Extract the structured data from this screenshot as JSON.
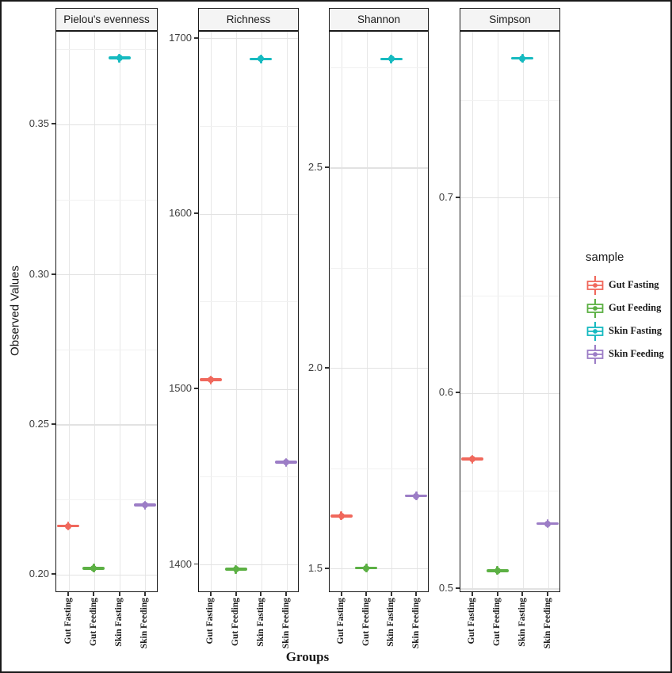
{
  "figure": {
    "y_axis_title": "Observed Values",
    "x_axis_title": "Groups"
  },
  "chart_data": {
    "type": "scatter",
    "subtype": "faceted-boxplot-summary",
    "title": "",
    "xlabel": "Groups",
    "ylabel": "Observed Values",
    "grid": true,
    "legend_position": "right",
    "categories": [
      "Gut Fasting",
      "Gut Feeding",
      "Skin Fasting",
      "Skin Feeding"
    ],
    "colors": {
      "Gut Fasting": "#f0685c",
      "Gut Feeding": "#5cb044",
      "Skin Fasting": "#16bac0",
      "Skin Feeding": "#9c7dc6"
    },
    "panels": [
      {
        "title": "Pielou's evenness",
        "ylim": [
          0.194,
          0.381
        ],
        "yticks": [
          0.2,
          0.25,
          0.3,
          0.35
        ],
        "ytick_labels": [
          "0.20",
          "0.25",
          "0.30",
          "0.35"
        ],
        "yticks_minor": [
          0.225,
          0.275,
          0.325,
          0.375
        ],
        "values": [
          0.216,
          0.202,
          0.372,
          0.223
        ]
      },
      {
        "title": "Richness",
        "ylim": [
          1384,
          1704
        ],
        "yticks": [
          1400,
          1500,
          1600,
          1700
        ],
        "ytick_labels": [
          "1400",
          "1500",
          "1600",
          "1700"
        ],
        "yticks_minor": [
          1450,
          1550,
          1650
        ],
        "values": [
          1505,
          1397,
          1688,
          1458
        ]
      },
      {
        "title": "Shannon",
        "ylim": [
          1.44,
          2.84
        ],
        "yticks": [
          1.5,
          2.0,
          2.5
        ],
        "ytick_labels": [
          "1.5",
          "2.0",
          "2.5"
        ],
        "yticks_minor": [
          1.75,
          2.25,
          2.75
        ],
        "values": [
          1.63,
          1.5,
          2.77,
          1.68
        ]
      },
      {
        "title": "Simpson",
        "ylim": [
          0.498,
          0.785
        ],
        "yticks": [
          0.5,
          0.6,
          0.7
        ],
        "ytick_labels": [
          "0.5",
          "0.6",
          "0.7"
        ],
        "yticks_minor": [
          0.55,
          0.65,
          0.75
        ],
        "values": [
          0.566,
          0.509,
          0.771,
          0.533
        ]
      }
    ],
    "legend": {
      "title": "sample",
      "items": [
        {
          "label": "Gut Fasting",
          "color": "#f0685c"
        },
        {
          "label": "Gut Feeding",
          "color": "#5cb044"
        },
        {
          "label": "Skin Fasting",
          "color": "#16bac0"
        },
        {
          "label": "Skin Feeding",
          "color": "#9c7dc6"
        }
      ]
    }
  }
}
